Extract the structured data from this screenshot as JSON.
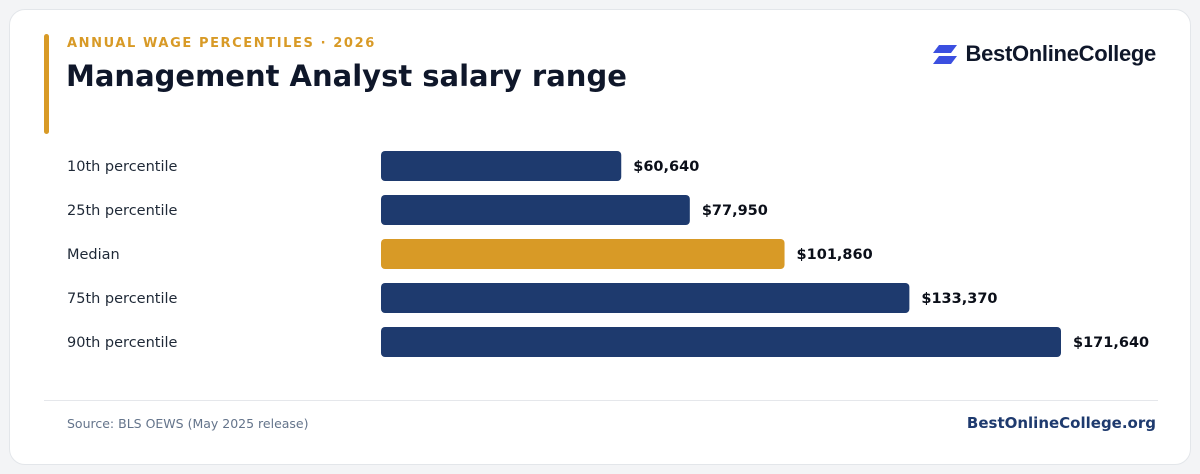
{
  "header": {
    "eyebrow": "ANNUAL WAGE PERCENTILES · 2026",
    "title": "Management Analyst salary range"
  },
  "brand": {
    "name": "BestOnlineCollege",
    "icon": "brand-logo-icon"
  },
  "footer": {
    "source": "Source: BLS OEWS (May 2025 release)",
    "site": "BestOnlineCollege.org"
  },
  "colors": {
    "accent": "#d89a26",
    "bar": "#1e3a6e",
    "highlight": "#d89a26",
    "title": "#0f172a",
    "label": "#1f2937",
    "value": "#0b0f19",
    "muted": "#64748b",
    "divider": "#e5e7eb",
    "brand_text": "#1e3a6e",
    "logo": "#3b4fe0"
  },
  "chart_data": {
    "type": "bar",
    "orientation": "horizontal",
    "categories": [
      "10th percentile",
      "25th percentile",
      "Median",
      "75th percentile",
      "90th percentile"
    ],
    "values": [
      60640,
      77950,
      101860,
      133370,
      171640
    ],
    "value_labels": [
      "$60,640",
      "$77,950",
      "$101,860",
      "$133,370",
      "$171,640"
    ],
    "highlight_index": 2,
    "xlim": [
      0,
      171640
    ],
    "grid": false,
    "legend": "none",
    "title": "",
    "xlabel": "",
    "ylabel": ""
  }
}
